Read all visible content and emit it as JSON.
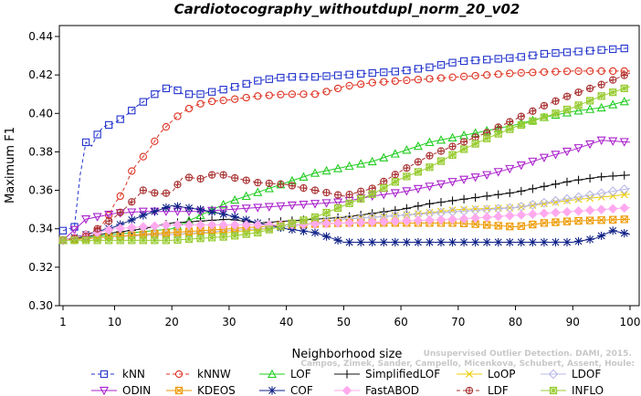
{
  "chart_data": {
    "type": "line",
    "title": "Cardiotocography_withoutdupl_norm_20_v02",
    "xlabel": "Neighborhood size",
    "ylabel": "Maximum F1",
    "xlim": [
      1,
      100
    ],
    "ylim": [
      0.3,
      0.44
    ],
    "xticks": [
      1,
      10,
      20,
      30,
      40,
      50,
      60,
      70,
      80,
      90,
      100
    ],
    "xtick_labels": [
      "1",
      "10",
      "20",
      "30",
      "40",
      "50",
      "60",
      "70",
      "80",
      "90",
      "100"
    ],
    "yticks": [
      0.3,
      0.32,
      0.34,
      0.36,
      0.38,
      0.4,
      0.42,
      0.44
    ],
    "ytick_labels": [
      "0.30",
      "0.32",
      "0.34",
      "0.36",
      "0.38",
      "0.40",
      "0.42",
      "0.44"
    ],
    "legend_position": "bottom",
    "watermark": "Campos, Zimek, Sander, Campello, Micenkova, Schubert, Assent, Houle: Unsupervised Outlier Detection. DAMI, 2015.",
    "series": [
      {
        "name": "kNN",
        "color": "#2233cc",
        "marker": "square",
        "dashed": true,
        "points": [
          [
            1,
            0.339
          ],
          [
            2,
            0.34
          ],
          [
            3,
            0.341
          ],
          [
            4,
            0.368
          ],
          [
            5,
            0.385
          ],
          [
            6,
            0.383
          ],
          [
            7,
            0.389
          ],
          [
            8,
            0.393
          ],
          [
            10,
            0.395
          ],
          [
            12,
            0.399
          ],
          [
            14,
            0.404
          ],
          [
            16,
            0.408
          ],
          [
            18,
            0.412
          ],
          [
            20,
            0.414
          ],
          [
            22,
            0.41
          ],
          [
            25,
            0.41
          ],
          [
            30,
            0.413
          ],
          [
            35,
            0.417
          ],
          [
            40,
            0.419
          ],
          [
            45,
            0.419
          ],
          [
            50,
            0.42
          ],
          [
            55,
            0.421
          ],
          [
            60,
            0.422
          ],
          [
            65,
            0.424
          ],
          [
            70,
            0.427
          ],
          [
            75,
            0.428
          ],
          [
            80,
            0.429
          ],
          [
            85,
            0.431
          ],
          [
            90,
            0.432
          ],
          [
            95,
            0.433
          ],
          [
            100,
            0.434
          ]
        ]
      },
      {
        "name": "kNNW",
        "color": "#dd3322",
        "marker": "circle",
        "dashed": true,
        "points": [
          [
            1,
            0.334
          ],
          [
            4,
            0.336
          ],
          [
            7,
            0.339
          ],
          [
            9,
            0.347
          ],
          [
            10,
            0.353
          ],
          [
            11,
            0.357
          ],
          [
            12,
            0.363
          ],
          [
            13,
            0.37
          ],
          [
            14,
            0.374
          ],
          [
            16,
            0.381
          ],
          [
            18,
            0.39
          ],
          [
            20,
            0.396
          ],
          [
            22,
            0.401
          ],
          [
            24,
            0.404
          ],
          [
            26,
            0.406
          ],
          [
            30,
            0.407
          ],
          [
            35,
            0.409
          ],
          [
            40,
            0.41
          ],
          [
            45,
            0.41
          ],
          [
            48,
            0.412
          ],
          [
            50,
            0.414
          ],
          [
            55,
            0.416
          ],
          [
            60,
            0.417
          ],
          [
            70,
            0.419
          ],
          [
            80,
            0.421
          ],
          [
            90,
            0.422
          ],
          [
            100,
            0.422
          ]
        ]
      },
      {
        "name": "LOF",
        "color": "#22cc22",
        "marker": "triangle-up",
        "dashed": false,
        "points": [
          [
            1,
            0.334
          ],
          [
            10,
            0.337
          ],
          [
            20,
            0.34
          ],
          [
            30,
            0.354
          ],
          [
            35,
            0.359
          ],
          [
            40,
            0.364
          ],
          [
            45,
            0.369
          ],
          [
            50,
            0.372
          ],
          [
            55,
            0.375
          ],
          [
            60,
            0.38
          ],
          [
            65,
            0.385
          ],
          [
            70,
            0.388
          ],
          [
            75,
            0.391
          ],
          [
            80,
            0.394
          ],
          [
            85,
            0.398
          ],
          [
            90,
            0.401
          ],
          [
            95,
            0.403
          ],
          [
            100,
            0.407
          ]
        ]
      },
      {
        "name": "SimplifiedLOF",
        "color": "#111111",
        "marker": "plus",
        "dashed": false,
        "points": [
          [
            1,
            0.334
          ],
          [
            5,
            0.336
          ],
          [
            10,
            0.338
          ],
          [
            15,
            0.34
          ],
          [
            20,
            0.343
          ],
          [
            25,
            0.344
          ],
          [
            30,
            0.345
          ],
          [
            35,
            0.343
          ],
          [
            40,
            0.344
          ],
          [
            45,
            0.345
          ],
          [
            50,
            0.346
          ],
          [
            55,
            0.348
          ],
          [
            60,
            0.35
          ],
          [
            65,
            0.353
          ],
          [
            70,
            0.355
          ],
          [
            75,
            0.357
          ],
          [
            80,
            0.359
          ],
          [
            85,
            0.362
          ],
          [
            90,
            0.365
          ],
          [
            95,
            0.367
          ],
          [
            100,
            0.368
          ]
        ]
      },
      {
        "name": "LoOP",
        "color": "#eecc00",
        "marker": "x",
        "dashed": false,
        "points": [
          [
            1,
            0.334
          ],
          [
            10,
            0.336
          ],
          [
            20,
            0.337
          ],
          [
            30,
            0.338
          ],
          [
            40,
            0.341
          ],
          [
            50,
            0.345
          ],
          [
            60,
            0.347
          ],
          [
            70,
            0.35
          ],
          [
            80,
            0.351
          ],
          [
            90,
            0.355
          ],
          [
            100,
            0.358
          ]
        ]
      },
      {
        "name": "LDOF",
        "color": "#b8b8e8",
        "marker": "diamond",
        "dashed": false,
        "points": [
          [
            1,
            0.334
          ],
          [
            10,
            0.336
          ],
          [
            20,
            0.337
          ],
          [
            30,
            0.339
          ],
          [
            40,
            0.341
          ],
          [
            50,
            0.345
          ],
          [
            60,
            0.347
          ],
          [
            70,
            0.349
          ],
          [
            80,
            0.351
          ],
          [
            90,
            0.356
          ],
          [
            100,
            0.361
          ]
        ]
      },
      {
        "name": "ODIN",
        "color": "#aa22cc",
        "marker": "triangle-down",
        "dashed": false,
        "points": [
          [
            1,
            0.334
          ],
          [
            5,
            0.345
          ],
          [
            10,
            0.348
          ],
          [
            15,
            0.349
          ],
          [
            20,
            0.349
          ],
          [
            25,
            0.349
          ],
          [
            30,
            0.35
          ],
          [
            40,
            0.352
          ],
          [
            50,
            0.354
          ],
          [
            55,
            0.357
          ],
          [
            60,
            0.359
          ],
          [
            65,
            0.362
          ],
          [
            70,
            0.365
          ],
          [
            75,
            0.368
          ],
          [
            80,
            0.372
          ],
          [
            85,
            0.377
          ],
          [
            90,
            0.381
          ],
          [
            95,
            0.386
          ],
          [
            100,
            0.385
          ]
        ]
      },
      {
        "name": "KDEOS",
        "color": "#ee9900",
        "marker": "square-x",
        "dashed": false,
        "points": [
          [
            1,
            0.334
          ],
          [
            10,
            0.336
          ],
          [
            20,
            0.338
          ],
          [
            30,
            0.34
          ],
          [
            40,
            0.342
          ],
          [
            50,
            0.343
          ],
          [
            60,
            0.343
          ],
          [
            70,
            0.343
          ],
          [
            75,
            0.342
          ],
          [
            80,
            0.341
          ],
          [
            85,
            0.343
          ],
          [
            90,
            0.344
          ],
          [
            100,
            0.345
          ]
        ]
      },
      {
        "name": "COF",
        "color": "#112288",
        "marker": "asterisk",
        "dashed": false,
        "points": [
          [
            1,
            0.334
          ],
          [
            5,
            0.337
          ],
          [
            10,
            0.341
          ],
          [
            15,
            0.347
          ],
          [
            20,
            0.352
          ],
          [
            25,
            0.35
          ],
          [
            30,
            0.347
          ],
          [
            35,
            0.343
          ],
          [
            40,
            0.34
          ],
          [
            45,
            0.338
          ],
          [
            48,
            0.335
          ],
          [
            50,
            0.333
          ],
          [
            60,
            0.333
          ],
          [
            70,
            0.333
          ],
          [
            80,
            0.333
          ],
          [
            90,
            0.333
          ],
          [
            94,
            0.335
          ],
          [
            97,
            0.339
          ],
          [
            100,
            0.337
          ]
        ]
      },
      {
        "name": "FastABOD",
        "color": "#ffaaee",
        "marker": "diamond-filled",
        "dashed": false,
        "points": [
          [
            1,
            0.334
          ],
          [
            10,
            0.34
          ],
          [
            20,
            0.342
          ],
          [
            30,
            0.342
          ],
          [
            40,
            0.342
          ],
          [
            50,
            0.343
          ],
          [
            60,
            0.344
          ],
          [
            70,
            0.345
          ],
          [
            80,
            0.347
          ],
          [
            90,
            0.349
          ],
          [
            100,
            0.351
          ]
        ]
      },
      {
        "name": "LDF",
        "color": "#aa3333",
        "marker": "circle-plus",
        "dashed": true,
        "points": [
          [
            1,
            0.334
          ],
          [
            5,
            0.336
          ],
          [
            10,
            0.346
          ],
          [
            12,
            0.351
          ],
          [
            15,
            0.36
          ],
          [
            18,
            0.358
          ],
          [
            20,
            0.359
          ],
          [
            22,
            0.367
          ],
          [
            25,
            0.366
          ],
          [
            28,
            0.369
          ],
          [
            30,
            0.367
          ],
          [
            35,
            0.364
          ],
          [
            40,
            0.363
          ],
          [
            45,
            0.36
          ],
          [
            50,
            0.357
          ],
          [
            55,
            0.361
          ],
          [
            60,
            0.37
          ],
          [
            65,
            0.378
          ],
          [
            70,
            0.384
          ],
          [
            75,
            0.39
          ],
          [
            80,
            0.397
          ],
          [
            85,
            0.404
          ],
          [
            90,
            0.41
          ],
          [
            95,
            0.415
          ],
          [
            100,
            0.421
          ]
        ]
      },
      {
        "name": "INFLO",
        "color": "#99cc33",
        "marker": "star-box",
        "dashed": false,
        "points": [
          [
            1,
            0.334
          ],
          [
            10,
            0.334
          ],
          [
            20,
            0.334
          ],
          [
            25,
            0.335
          ],
          [
            30,
            0.336
          ],
          [
            35,
            0.338
          ],
          [
            40,
            0.342
          ],
          [
            45,
            0.346
          ],
          [
            50,
            0.352
          ],
          [
            55,
            0.358
          ],
          [
            60,
            0.366
          ],
          [
            65,
            0.372
          ],
          [
            70,
            0.38
          ],
          [
            75,
            0.387
          ],
          [
            80,
            0.393
          ],
          [
            85,
            0.398
          ],
          [
            90,
            0.403
          ],
          [
            95,
            0.409
          ],
          [
            100,
            0.414
          ]
        ]
      }
    ]
  }
}
